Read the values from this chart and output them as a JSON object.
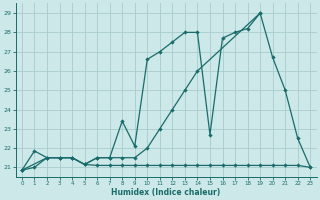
{
  "xlabel": "Humidex (Indice chaleur)",
  "bg_color": "#cce8e8",
  "grid_color": "#aacccc",
  "line_color": "#1a6b6b",
  "xlim": [
    -0.5,
    23.5
  ],
  "ylim": [
    20.5,
    29.5
  ],
  "yticks": [
    21,
    22,
    23,
    24,
    25,
    26,
    27,
    28,
    29
  ],
  "xticks": [
    0,
    1,
    2,
    3,
    4,
    5,
    6,
    7,
    8,
    9,
    10,
    11,
    12,
    13,
    14,
    15,
    16,
    17,
    18,
    19,
    20,
    21,
    22,
    23
  ],
  "line1_x": [
    0,
    1,
    2,
    3,
    4,
    5,
    6,
    7,
    8,
    9,
    10,
    11,
    12,
    13,
    14,
    15,
    16,
    17,
    18,
    19
  ],
  "line1_y": [
    20.85,
    21.85,
    21.5,
    21.5,
    21.5,
    21.15,
    21.5,
    21.5,
    23.4,
    22.1,
    26.6,
    27.0,
    27.5,
    28.0,
    28.0,
    22.7,
    27.7,
    28.0,
    28.2,
    29.0
  ],
  "line2_x": [
    0,
    2,
    3,
    4,
    5,
    6,
    7,
    8,
    9,
    10,
    11,
    12,
    13,
    14,
    19,
    20,
    21,
    22,
    23
  ],
  "line2_y": [
    20.85,
    21.5,
    21.5,
    21.5,
    21.15,
    21.5,
    21.5,
    21.5,
    21.5,
    22.0,
    23.0,
    24.0,
    25.0,
    26.0,
    29.0,
    26.7,
    25.0,
    22.5,
    21.0
  ],
  "line3_x": [
    0,
    1,
    2,
    3,
    4,
    5,
    6,
    7,
    8,
    9,
    10,
    11,
    12,
    13,
    14,
    15,
    16,
    17,
    18,
    19,
    20,
    21,
    22,
    23
  ],
  "line3_y": [
    20.85,
    21.0,
    21.5,
    21.5,
    21.5,
    21.15,
    21.1,
    21.1,
    21.1,
    21.1,
    21.1,
    21.1,
    21.1,
    21.1,
    21.1,
    21.1,
    21.1,
    21.1,
    21.1,
    21.1,
    21.1,
    21.1,
    21.1,
    21.0
  ]
}
